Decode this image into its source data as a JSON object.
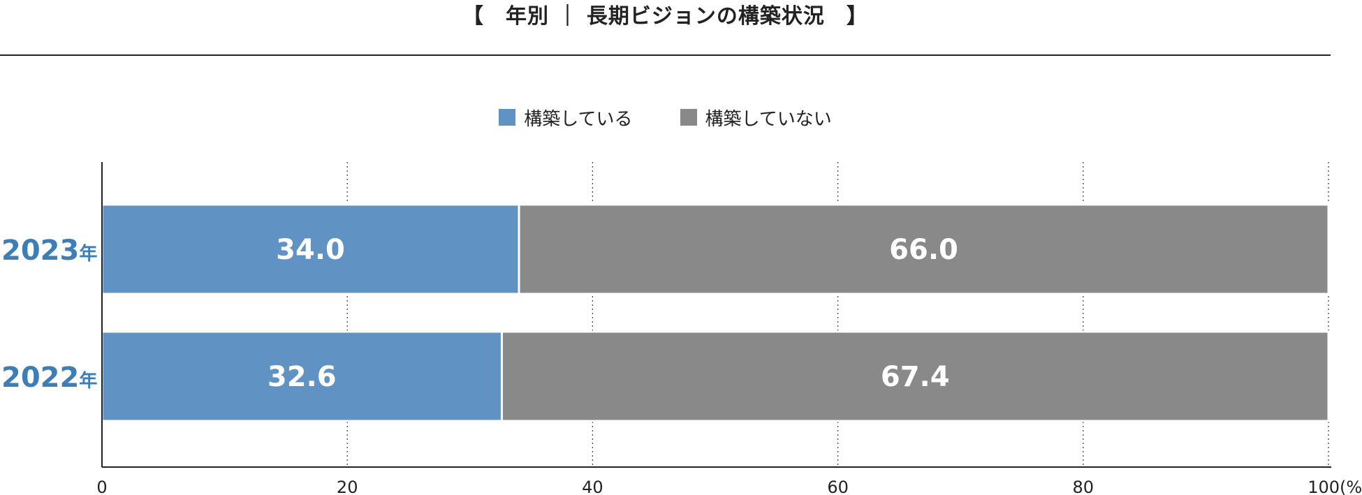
{
  "title": "【　年別 ｜ 長期ビジョンの構築状況　】",
  "legend": {
    "items": [
      {
        "label": "構築している",
        "color": "#6092c3"
      },
      {
        "label": "構築していない",
        "color": "#898989"
      }
    ]
  },
  "chart_data": {
    "type": "bar",
    "orientation": "horizontal",
    "stacked": true,
    "categories": [
      "2023年",
      "2022年"
    ],
    "series": [
      {
        "name": "構築している",
        "values": [
          34.0,
          32.6
        ],
        "color": "#6092c3"
      },
      {
        "name": "構築していない",
        "values": [
          66.0,
          67.4
        ],
        "color": "#898989"
      }
    ],
    "xlim": [
      0,
      100
    ],
    "xticks": [
      "0",
      "20",
      "40",
      "60",
      "80",
      "100"
    ],
    "xunit": "(%)",
    "grid": "vertical dotted",
    "legend_position": "top-center",
    "category_color": "#3d7db8"
  }
}
